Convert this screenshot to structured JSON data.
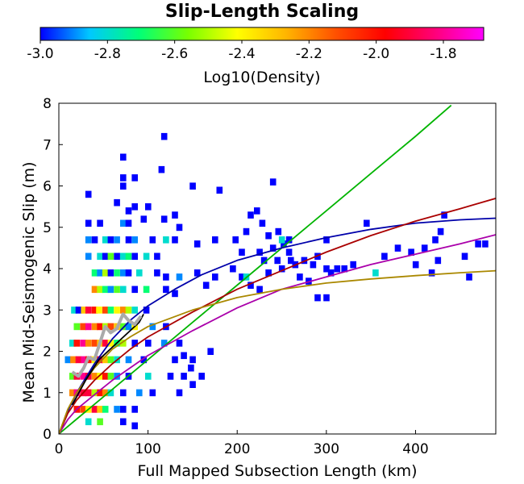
{
  "chart_data": {
    "type": "heatmap",
    "title": "Slip-Length Scaling",
    "xlabel": "Full Mapped Subsection Length (km)",
    "ylabel": "Mean Mid-Seismogenic Slip (m)",
    "xlim": [
      0,
      490
    ],
    "ylim": [
      0,
      8
    ],
    "xticks": [
      "0",
      "100",
      "200",
      "300",
      "400"
    ],
    "yticks": [
      "0",
      "1",
      "2",
      "3",
      "4",
      "5",
      "6",
      "7",
      "8"
    ],
    "grid": false,
    "colorbar": {
      "label": "Log10(Density)",
      "range": [
        -3.0,
        -1.68
      ],
      "ticks": [
        "-3.0",
        "-2.8",
        "-2.6",
        "-2.4",
        "-2.2",
        "-2.0",
        "-1.8"
      ],
      "colors": [
        "#0000ff",
        "#00c8ff",
        "#00ff78",
        "#78ff00",
        "#ffff00",
        "#ffb400",
        "#ff5000",
        "#ff0000",
        "#ff0078",
        "#ff00ff"
      ]
    },
    "bin_size": {
      "x": 6.5,
      "y": 0.16
    },
    "cells": [
      [
        17,
        3.0,
        -2.8
      ],
      [
        22,
        3.0,
        -3.0
      ],
      [
        28,
        3.0,
        -2.3
      ],
      [
        33,
        3.0,
        -1.9
      ],
      [
        40,
        3.0,
        -2.0
      ],
      [
        45,
        3.0,
        -2.4
      ],
      [
        52,
        3.0,
        -2.1
      ],
      [
        58,
        3.0,
        -2.7
      ],
      [
        65,
        3.0,
        -2.4
      ],
      [
        72,
        3.0,
        -2.2
      ],
      [
        78,
        3.0,
        -2.5
      ],
      [
        85,
        3.0,
        -2.8
      ],
      [
        98,
        3.0,
        -3.0
      ],
      [
        20,
        2.6,
        -2.6
      ],
      [
        27,
        2.6,
        -2.1
      ],
      [
        33,
        2.6,
        -1.8
      ],
      [
        40,
        2.6,
        -2.2
      ],
      [
        46,
        2.6,
        -2.0
      ],
      [
        52,
        2.6,
        -2.5
      ],
      [
        58,
        2.6,
        -2.1
      ],
      [
        65,
        2.6,
        -2.3
      ],
      [
        72,
        2.6,
        -2.6
      ],
      [
        78,
        2.6,
        -2.9
      ],
      [
        85,
        2.6,
        -2.4
      ],
      [
        105,
        2.6,
        -2.9
      ],
      [
        120,
        2.6,
        -3.0
      ],
      [
        15,
        2.2,
        -2.8
      ],
      [
        20,
        2.2,
        -2.0
      ],
      [
        27,
        2.2,
        -1.8
      ],
      [
        33,
        2.2,
        -2.2
      ],
      [
        40,
        2.2,
        -2.1
      ],
      [
        46,
        2.2,
        -2.3
      ],
      [
        52,
        2.2,
        -1.9
      ],
      [
        58,
        2.2,
        -2.4
      ],
      [
        65,
        2.2,
        -2.7
      ],
      [
        72,
        2.2,
        -2.5
      ],
      [
        85,
        2.2,
        -3.0
      ],
      [
        100,
        2.2,
        -3.0
      ],
      [
        118,
        2.2,
        -2.9
      ],
      [
        135,
        2.2,
        -3.0
      ],
      [
        10,
        1.8,
        -2.9
      ],
      [
        16,
        1.8,
        -2.2
      ],
      [
        22,
        1.8,
        -1.9
      ],
      [
        28,
        1.8,
        -1.8
      ],
      [
        33,
        1.8,
        -2.0
      ],
      [
        40,
        1.8,
        -2.4
      ],
      [
        46,
        1.8,
        -1.9
      ],
      [
        52,
        1.8,
        -2.3
      ],
      [
        58,
        1.8,
        -2.6
      ],
      [
        65,
        1.8,
        -2.8
      ],
      [
        78,
        1.8,
        -2.9
      ],
      [
        95,
        1.8,
        -3.0
      ],
      [
        130,
        1.8,
        -3.0
      ],
      [
        150,
        1.8,
        -3.0
      ],
      [
        15,
        1.4,
        -2.6
      ],
      [
        20,
        1.4,
        -1.9
      ],
      [
        27,
        1.4,
        -1.8
      ],
      [
        33,
        1.4,
        -1.9
      ],
      [
        40,
        1.4,
        -2.2
      ],
      [
        46,
        1.4,
        -2.4
      ],
      [
        52,
        1.4,
        -2.0
      ],
      [
        58,
        1.4,
        -2.6
      ],
      [
        65,
        1.4,
        -2.9
      ],
      [
        78,
        1.4,
        -3.0
      ],
      [
        100,
        1.4,
        -2.8
      ],
      [
        125,
        1.4,
        -3.0
      ],
      [
        140,
        1.4,
        -3.0
      ],
      [
        15,
        1.0,
        -2.2
      ],
      [
        20,
        1.0,
        -1.8
      ],
      [
        27,
        1.0,
        -1.9
      ],
      [
        33,
        1.0,
        -1.9
      ],
      [
        40,
        1.0,
        -2.5
      ],
      [
        46,
        1.0,
        -2.0
      ],
      [
        52,
        1.0,
        -2.2
      ],
      [
        58,
        1.0,
        -2.8
      ],
      [
        72,
        1.0,
        -3.0
      ],
      [
        90,
        1.0,
        -2.9
      ],
      [
        105,
        1.0,
        -3.0
      ],
      [
        20,
        0.6,
        -2.0
      ],
      [
        27,
        0.6,
        -2.1
      ],
      [
        33,
        0.6,
        -2.4
      ],
      [
        40,
        0.6,
        -1.9
      ],
      [
        46,
        0.6,
        -2.3
      ],
      [
        52,
        0.6,
        -2.7
      ],
      [
        65,
        0.6,
        -2.9
      ],
      [
        72,
        0.6,
        -3.0
      ],
      [
        85,
        0.6,
        -3.0
      ],
      [
        33,
        0.3,
        -2.8
      ],
      [
        46,
        0.3,
        -2.6
      ],
      [
        72,
        0.3,
        -3.0
      ],
      [
        85,
        0.2,
        -3.0
      ],
      [
        40,
        3.5,
        -2.2
      ],
      [
        46,
        3.5,
        -2.5
      ],
      [
        52,
        3.5,
        -2.7
      ],
      [
        58,
        3.5,
        -2.9
      ],
      [
        65,
        3.5,
        -2.6
      ],
      [
        72,
        3.5,
        -2.8
      ],
      [
        85,
        3.5,
        -3.0
      ],
      [
        98,
        3.5,
        -2.7
      ],
      [
        120,
        3.5,
        -3.0
      ],
      [
        130,
        3.4,
        -3.0
      ],
      [
        40,
        3.9,
        -2.7
      ],
      [
        46,
        3.9,
        -2.9
      ],
      [
        52,
        3.9,
        -2.5
      ],
      [
        58,
        3.9,
        -3.0
      ],
      [
        65,
        3.9,
        -2.7
      ],
      [
        72,
        3.9,
        -2.9
      ],
      [
        78,
        3.9,
        -3.0
      ],
      [
        90,
        3.9,
        -2.8
      ],
      [
        110,
        3.9,
        -3.0
      ],
      [
        120,
        3.8,
        -3.0
      ],
      [
        135,
        3.8,
        -2.9
      ],
      [
        33,
        4.3,
        -2.9
      ],
      [
        46,
        4.3,
        -2.8
      ],
      [
        52,
        4.3,
        -3.0
      ],
      [
        58,
        4.3,
        -2.6
      ],
      [
        65,
        4.3,
        -3.0
      ],
      [
        72,
        4.3,
        -2.8
      ],
      [
        78,
        4.3,
        -2.7
      ],
      [
        85,
        4.3,
        -3.0
      ],
      [
        98,
        4.3,
        -2.8
      ],
      [
        110,
        4.3,
        -3.0
      ],
      [
        33,
        4.7,
        -2.9
      ],
      [
        40,
        4.7,
        -3.0
      ],
      [
        52,
        4.7,
        -2.8
      ],
      [
        58,
        4.7,
        -3.0
      ],
      [
        65,
        4.7,
        -2.9
      ],
      [
        78,
        4.7,
        -3.0
      ],
      [
        85,
        4.7,
        -2.9
      ],
      [
        105,
        4.7,
        -3.0
      ],
      [
        120,
        4.7,
        -2.8
      ],
      [
        130,
        4.7,
        -3.0
      ],
      [
        155,
        4.6,
        -3.0
      ],
      [
        175,
        4.7,
        -3.0
      ],
      [
        33,
        5.1,
        -3.0
      ],
      [
        46,
        5.1,
        -3.0
      ],
      [
        72,
        5.1,
        -2.9
      ],
      [
        78,
        5.1,
        -3.0
      ],
      [
        95,
        5.2,
        -3.0
      ],
      [
        118,
        5.2,
        -3.0
      ],
      [
        135,
        5.0,
        -3.0
      ],
      [
        33,
        5.8,
        -3.0
      ],
      [
        65,
        5.6,
        -3.0
      ],
      [
        78,
        5.4,
        -3.0
      ],
      [
        85,
        5.5,
        -3.0
      ],
      [
        100,
        5.5,
        -3.0
      ],
      [
        130,
        5.3,
        -3.0
      ],
      [
        72,
        6.2,
        -3.0
      ],
      [
        85,
        6.2,
        -3.0
      ],
      [
        72,
        6.0,
        -3.0
      ],
      [
        150,
        6.0,
        -3.0
      ],
      [
        115,
        6.4,
        -3.0
      ],
      [
        72,
        6.7,
        -3.0
      ],
      [
        118,
        7.2,
        -3.0
      ],
      [
        240,
        6.1,
        -3.0
      ],
      [
        180,
        5.9,
        -3.0
      ],
      [
        198,
        4.7,
        -3.0
      ],
      [
        205,
        4.4,
        -3.0
      ],
      [
        210,
        4.9,
        -3.0
      ],
      [
        215,
        5.3,
        -3.0
      ],
      [
        222,
        5.4,
        -3.0
      ],
      [
        228,
        5.1,
        -3.0
      ],
      [
        235,
        4.8,
        -3.0
      ],
      [
        240,
        4.5,
        -3.0
      ],
      [
        246,
        4.9,
        -3.0
      ],
      [
        252,
        4.6,
        -3.0
      ],
      [
        258,
        4.7,
        -3.0
      ],
      [
        195,
        4.0,
        -3.0
      ],
      [
        205,
        3.8,
        -3.0
      ],
      [
        215,
        3.6,
        -3.0
      ],
      [
        225,
        3.5,
        -3.0
      ],
      [
        235,
        3.9,
        -3.0
      ],
      [
        245,
        4.2,
        -3.0
      ],
      [
        250,
        4.0,
        -3.0
      ],
      [
        258,
        4.4,
        -3.0
      ],
      [
        265,
        4.1,
        -3.0
      ],
      [
        270,
        3.8,
        -3.0
      ],
      [
        280,
        3.7,
        -3.0
      ],
      [
        285,
        4.1,
        -3.0
      ],
      [
        290,
        4.3,
        -3.0
      ],
      [
        300,
        4.0,
        -3.0
      ],
      [
        305,
        3.9,
        -3.0
      ],
      [
        312,
        4.0,
        -3.0
      ],
      [
        320,
        4.0,
        -3.0
      ],
      [
        330,
        4.1,
        -3.0
      ],
      [
        290,
        3.3,
        -3.0
      ],
      [
        300,
        3.3,
        -3.0
      ],
      [
        210,
        3.8,
        -2.8
      ],
      [
        225,
        4.4,
        -3.0
      ],
      [
        230,
        4.2,
        -3.0
      ],
      [
        260,
        4.2,
        -3.0
      ],
      [
        275,
        4.2,
        -3.0
      ],
      [
        300,
        4.7,
        -3.0
      ],
      [
        345,
        5.1,
        -3.0
      ],
      [
        250,
        4.7,
        -2.8
      ],
      [
        175,
        3.8,
        -3.0
      ],
      [
        165,
        3.6,
        -3.0
      ],
      [
        155,
        3.9,
        -3.0
      ],
      [
        170,
        2.0,
        -3.0
      ],
      [
        160,
        1.4,
        -3.0
      ],
      [
        148,
        1.6,
        -3.0
      ],
      [
        140,
        1.9,
        -3.0
      ],
      [
        135,
        1.0,
        -3.0
      ],
      [
        150,
        1.2,
        -3.0
      ],
      [
        395,
        4.4,
        -3.0
      ],
      [
        400,
        4.1,
        -3.0
      ],
      [
        418,
        3.9,
        -3.0
      ],
      [
        422,
        4.7,
        -3.0
      ],
      [
        428,
        4.9,
        -3.0
      ],
      [
        432,
        5.3,
        -3.0
      ],
      [
        470,
        4.6,
        -3.0
      ],
      [
        478,
        4.6,
        -3.0
      ],
      [
        455,
        4.3,
        -3.0
      ],
      [
        425,
        4.2,
        -3.0
      ],
      [
        460,
        3.8,
        -3.0
      ],
      [
        365,
        4.3,
        -3.0
      ],
      [
        355,
        3.9,
        -2.8
      ],
      [
        380,
        4.5,
        -3.0
      ],
      [
        410,
        4.5,
        -3.0
      ]
    ],
    "series": [
      {
        "color": "#00b400",
        "x": [
          0,
          20,
          50,
          100,
          150,
          200,
          250,
          300,
          350,
          400,
          440
        ],
        "y": [
          0,
          0.36,
          0.9,
          1.8,
          2.7,
          3.6,
          4.5,
          5.4,
          6.3,
          7.2,
          7.95
        ]
      },
      {
        "color": "#0000aa",
        "x": [
          0,
          10,
          20,
          40,
          60,
          80,
          100,
          130,
          160,
          200,
          250,
          300,
          350,
          400,
          450,
          490
        ],
        "y": [
          0,
          0.55,
          1.0,
          1.7,
          2.3,
          2.75,
          3.1,
          3.5,
          3.85,
          4.2,
          4.5,
          4.75,
          4.95,
          5.1,
          5.18,
          5.22
        ]
      },
      {
        "color": "#aa0000",
        "x": [
          0,
          10,
          20,
          40,
          60,
          80,
          100,
          150,
          200,
          250,
          300,
          350,
          400,
          450,
          490
        ],
        "y": [
          0,
          0.5,
          0.82,
          1.3,
          1.7,
          2.05,
          2.35,
          2.95,
          3.5,
          3.95,
          4.4,
          4.8,
          5.15,
          5.45,
          5.7
        ]
      },
      {
        "color": "#aa00aa",
        "x": [
          0,
          10,
          20,
          40,
          60,
          80,
          100,
          150,
          200,
          250,
          300,
          350,
          400,
          450,
          490
        ],
        "y": [
          0,
          0.35,
          0.6,
          0.95,
          1.3,
          1.6,
          1.9,
          2.5,
          3.05,
          3.5,
          3.8,
          4.1,
          4.35,
          4.6,
          4.82
        ]
      },
      {
        "color": "#aa8800",
        "x": [
          0,
          10,
          20,
          40,
          60,
          80,
          100,
          150,
          200,
          250,
          300,
          350,
          400,
          450,
          490
        ],
        "y": [
          0,
          0.6,
          1.0,
          1.6,
          2.05,
          2.35,
          2.6,
          3.0,
          3.3,
          3.5,
          3.65,
          3.75,
          3.83,
          3.9,
          3.95
        ]
      },
      {
        "color": "#000000",
        "x": [
          15,
          30,
          45,
          60,
          75,
          90,
          95
        ],
        "y": [
          0.7,
          1.3,
          1.8,
          2.1,
          2.4,
          2.7,
          2.9
        ]
      },
      {
        "color": "#aaaaaa",
        "width": 4,
        "x": [
          15,
          22,
          28,
          33,
          40,
          46,
          52,
          58,
          65,
          72,
          78,
          85,
          92
        ],
        "y": [
          1.5,
          1.4,
          1.6,
          1.85,
          1.8,
          2.2,
          2.6,
          2.45,
          2.55,
          2.9,
          2.75,
          2.65,
          2.85
        ]
      }
    ]
  }
}
